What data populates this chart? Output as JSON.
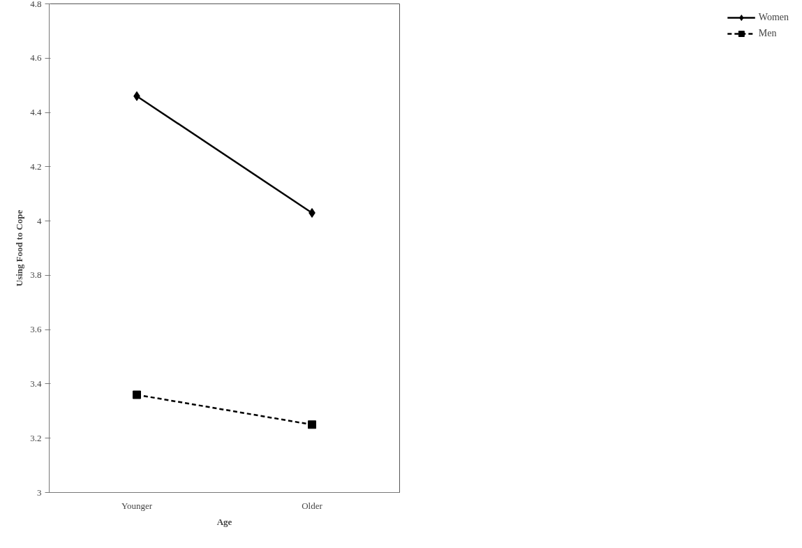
{
  "chart_data": {
    "type": "line",
    "xlabel": "Age",
    "ylabel": "Using Food to Cope",
    "categories": [
      "Younger",
      "Older"
    ],
    "series": [
      {
        "name": "Women",
        "color": "#000000",
        "values": [
          4.46,
          4.03
        ],
        "marker": "diamond",
        "line_style": "solid"
      },
      {
        "name": "Men",
        "color": "#000000",
        "values": [
          3.36,
          3.25
        ],
        "marker": "square",
        "line_style": "dashed"
      }
    ],
    "ylim": [
      3,
      4.8
    ],
    "yticks": [
      3,
      3.2,
      3.4,
      3.6,
      3.8,
      4,
      4.2,
      4.4,
      4.6,
      4.8
    ],
    "grid": false,
    "legend": "right"
  }
}
